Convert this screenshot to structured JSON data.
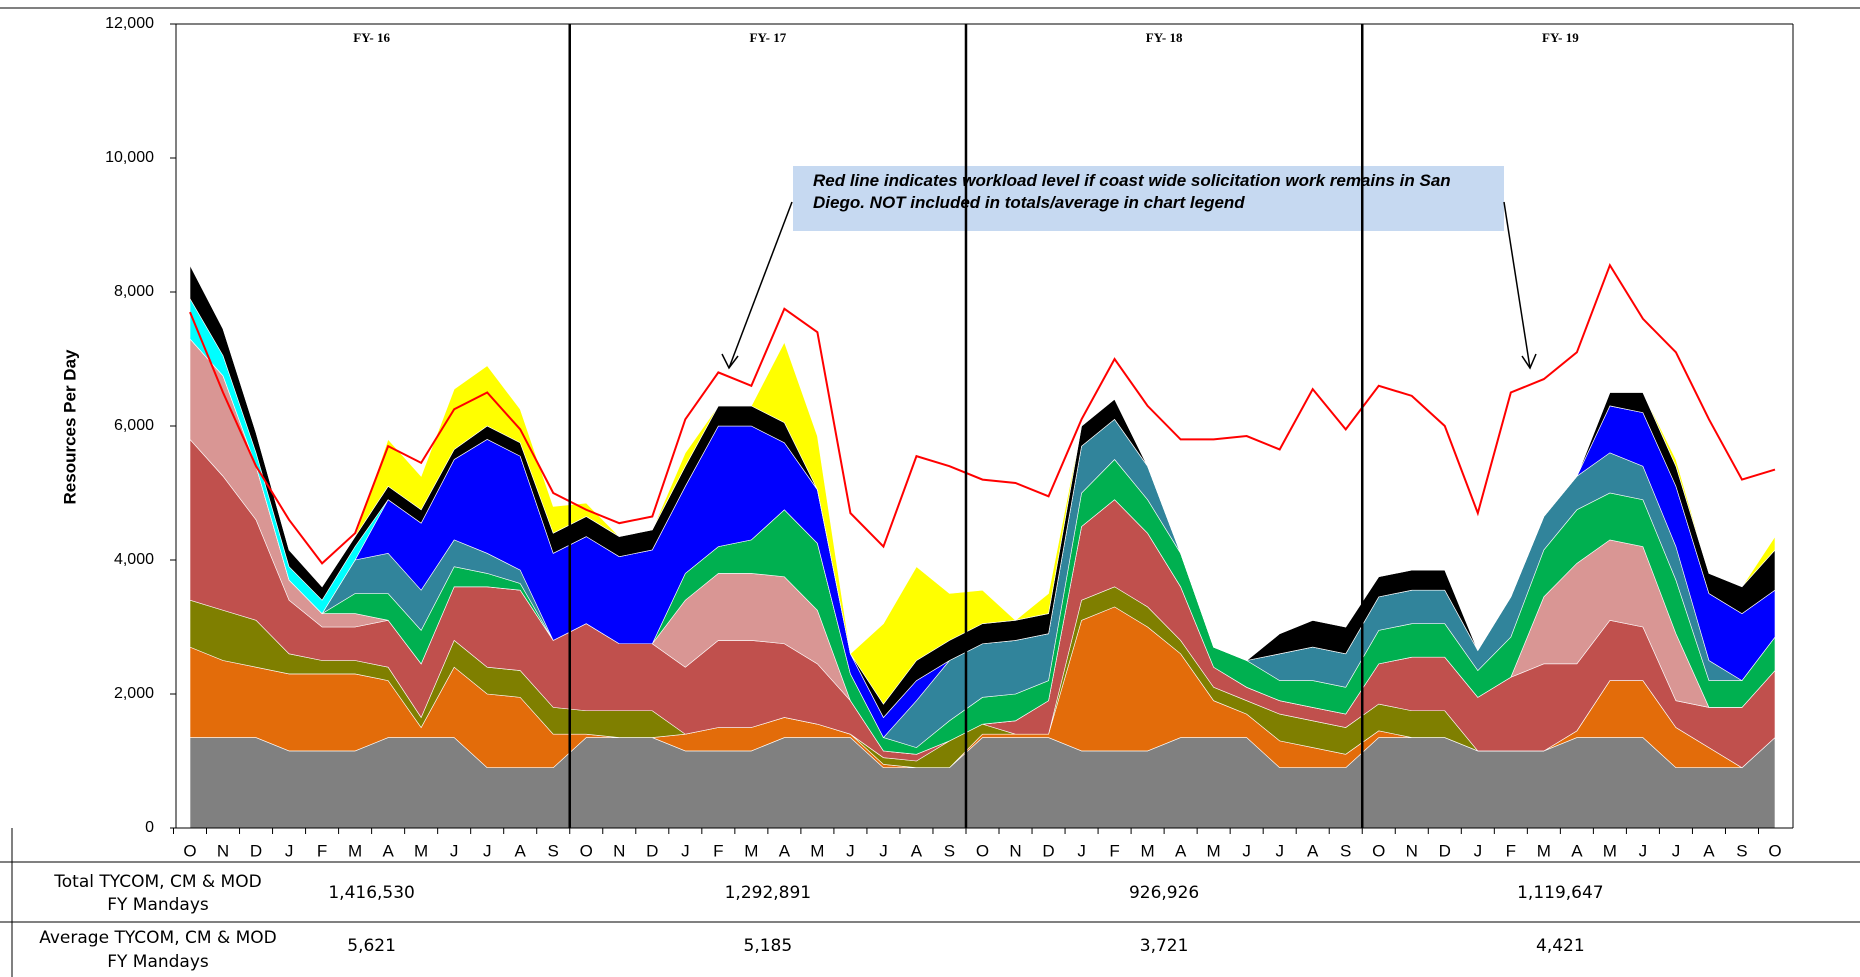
{
  "chart_data": {
    "type": "stacked_area",
    "ylabel": "Resources Per Day",
    "categories": [
      "O",
      "N",
      "D",
      "J",
      "F",
      "M",
      "A",
      "M",
      "J",
      "J",
      "A",
      "S",
      "O",
      "N",
      "D",
      "J",
      "F",
      "M",
      "A",
      "M",
      "J",
      "J",
      "A",
      "S",
      "O",
      "N",
      "D",
      "J",
      "F",
      "M",
      "A",
      "M",
      "J",
      "J",
      "A",
      "S",
      "O",
      "N",
      "D",
      "J",
      "F",
      "M",
      "A",
      "M",
      "J",
      "J",
      "A",
      "S",
      "O"
    ],
    "ylim": [
      0,
      12000
    ],
    "yticks": [
      0,
      {
        "value": 2000,
        "label": "2,000"
      },
      {
        "value": 4000,
        "label": "4,000"
      },
      {
        "value": 6000,
        "label": "6,000"
      },
      {
        "value": 8000,
        "label": "8,000"
      },
      {
        "value": 10000,
        "label": "10,000"
      },
      {
        "value": 12000,
        "label": "12,000"
      }
    ],
    "fiscal_years": [
      "FY- 16",
      "FY- 17",
      "FY- 18",
      "FY- 19"
    ],
    "annotation": "Red line indicates workload level if coast wide solicitation work remains in San Diego.  NOT included in totals/average in chart legend",
    "series": [
      {
        "color": "#808080",
        "values": [
          1350,
          1350,
          1350,
          1150,
          1150,
          1150,
          1350,
          1350,
          1350,
          900,
          900,
          900,
          1350,
          1350,
          1350,
          1150,
          1150,
          1150,
          1350,
          1350,
          1350,
          900,
          900,
          900,
          1350,
          1350,
          1350,
          1150,
          1150,
          1150,
          1350,
          1350,
          1350,
          900,
          900,
          900,
          1350,
          1350,
          1350,
          1150,
          1150,
          1150,
          1350,
          1350,
          1350,
          900,
          900,
          900,
          1350
        ]
      },
      {
        "color": "#e36c0a",
        "values": [
          1350,
          1150,
          1050,
          1150,
          1150,
          1150,
          850,
          150,
          1050,
          1100,
          1050,
          500,
          50,
          0,
          0,
          250,
          350,
          350,
          300,
          200,
          50,
          50,
          0,
          0,
          50,
          50,
          50,
          1950,
          2150,
          1850,
          1250,
          550,
          350,
          400,
          300,
          200,
          100,
          0,
          0,
          0,
          0,
          0,
          100,
          850,
          850,
          600,
          300,
          0,
          0
        ]
      },
      {
        "color": "#7f7f00",
        "values": [
          700,
          750,
          700,
          300,
          200,
          200,
          200,
          150,
          400,
          400,
          400,
          400,
          350,
          400,
          400,
          0,
          0,
          0,
          0,
          0,
          0,
          100,
          100,
          400,
          150,
          0,
          0,
          300,
          300,
          300,
          200,
          200,
          200,
          400,
          400,
          400,
          400,
          400,
          400,
          0,
          0,
          0,
          0,
          0,
          0,
          0,
          0,
          0,
          0
        ]
      },
      {
        "color": "#c0504d",
        "values": [
          2400,
          2000,
          1500,
          800,
          500,
          500,
          700,
          800,
          800,
          1200,
          1200,
          1000,
          1300,
          1000,
          1000,
          1000,
          1300,
          1300,
          1100,
          900,
          500,
          100,
          100,
          0,
          0,
          200,
          500,
          1100,
          1300,
          1100,
          800,
          300,
          200,
          200,
          200,
          200,
          600,
          800,
          800,
          800,
          1100,
          1300,
          1000,
          900,
          800,
          400,
          600,
          900,
          1000
        ]
      },
      {
        "color": "#d99694",
        "values": [
          1500,
          1500,
          800,
          300,
          200,
          200,
          0,
          0,
          0,
          0,
          0,
          0,
          0,
          0,
          0,
          1000,
          1000,
          1000,
          1000,
          800,
          0,
          0,
          0,
          0,
          0,
          0,
          0,
          0,
          0,
          0,
          0,
          0,
          0,
          0,
          0,
          0,
          0,
          0,
          0,
          0,
          0,
          1000,
          1500,
          1200,
          1200,
          1000,
          0,
          0,
          0
        ]
      },
      {
        "color": "#00b050",
        "values": [
          0,
          0,
          0,
          0,
          0,
          300,
          400,
          500,
          300,
          200,
          100,
          0,
          0,
          0,
          0,
          400,
          400,
          500,
          1000,
          1000,
          400,
          200,
          100,
          300,
          400,
          400,
          300,
          500,
          600,
          500,
          500,
          300,
          400,
          300,
          400,
          400,
          500,
          500,
          500,
          400,
          600,
          700,
          800,
          700,
          700,
          800,
          400,
          400,
          500
        ]
      },
      {
        "color": "#31849b",
        "values": [
          0,
          0,
          0,
          0,
          0,
          500,
          600,
          600,
          400,
          300,
          200,
          0,
          0,
          0,
          0,
          0,
          0,
          0,
          0,
          0,
          0,
          0,
          700,
          900,
          800,
          800,
          700,
          700,
          600,
          500,
          0,
          0,
          0,
          400,
          500,
          500,
          500,
          500,
          500,
          300,
          600,
          500,
          500,
          600,
          500,
          500,
          300,
          0,
          0
        ]
      },
      {
        "color": "#0000ff",
        "values": [
          0,
          0,
          0,
          0,
          0,
          0,
          800,
          1000,
          1200,
          1700,
          1700,
          1300,
          1300,
          1300,
          1400,
          1300,
          1800,
          1700,
          1000,
          800,
          300,
          300,
          300,
          0,
          0,
          0,
          0,
          0,
          0,
          0,
          0,
          0,
          0,
          0,
          0,
          0,
          0,
          0,
          0,
          0,
          0,
          0,
          0,
          700,
          800,
          900,
          1000,
          1000,
          700
        ]
      },
      {
        "color": "#00ffff",
        "values": [
          600,
          300,
          200,
          200,
          200,
          200,
          0,
          0,
          0,
          0,
          0,
          0,
          0,
          0,
          0,
          0,
          0,
          0,
          0,
          0,
          0,
          0,
          0,
          0,
          0,
          0,
          0,
          0,
          0,
          0,
          0,
          0,
          0,
          0,
          0,
          0,
          0,
          0,
          0,
          0,
          0,
          0,
          0,
          0,
          0,
          0,
          0,
          0,
          0
        ]
      },
      {
        "color": "#000000",
        "values": [
          500,
          400,
          300,
          250,
          200,
          150,
          200,
          200,
          150,
          200,
          200,
          300,
          300,
          300,
          300,
          300,
          300,
          300,
          300,
          0,
          0,
          200,
          300,
          300,
          300,
          300,
          300,
          300,
          300,
          0,
          0,
          0,
          0,
          300,
          400,
          400,
          300,
          300,
          300,
          0,
          0,
          0,
          0,
          200,
          300,
          300,
          300,
          400,
          600
        ]
      },
      {
        "color": "#ffff00",
        "values": [
          0,
          0,
          0,
          0,
          0,
          0,
          700,
          500,
          900,
          900,
          500,
          400,
          200,
          0,
          0,
          200,
          0,
          0,
          1200,
          800,
          0,
          1200,
          1400,
          700,
          500,
          0,
          300,
          0,
          0,
          0,
          0,
          0,
          0,
          0,
          0,
          0,
          0,
          0,
          0,
          0,
          0,
          0,
          0,
          0,
          0,
          100,
          0,
          0,
          200
        ]
      }
    ],
    "overlay_series": [
      {
        "color": "#ff0000",
        "values": [
          7700,
          6500,
          5400,
          4600,
          3950,
          4400,
          5700,
          5450,
          6250,
          6500,
          5950,
          5000,
          4750,
          4550,
          4650,
          6100,
          6800,
          6600,
          7750,
          7400,
          4700,
          4200,
          5550,
          5400,
          5200,
          5150,
          4950,
          6100,
          7000,
          6300,
          5800,
          5800,
          5850,
          5650,
          6550,
          5950,
          6600,
          6450,
          6000,
          4700,
          6500,
          6700,
          7100,
          8400,
          7600,
          7100,
          6100,
          5200,
          5350
        ]
      }
    ]
  },
  "table": {
    "rows": [
      {
        "label": [
          "Total  TYCOM, CM & MOD",
          "FY Mandays"
        ],
        "values": [
          "1,416,530",
          "1,292,891",
          "926,926",
          "1,119,647"
        ]
      },
      {
        "label": [
          "Average TYCOM, CM & MOD",
          "FY Mandays"
        ],
        "values": [
          "5,621",
          "5,185",
          "3,721",
          "4,421"
        ]
      }
    ]
  }
}
